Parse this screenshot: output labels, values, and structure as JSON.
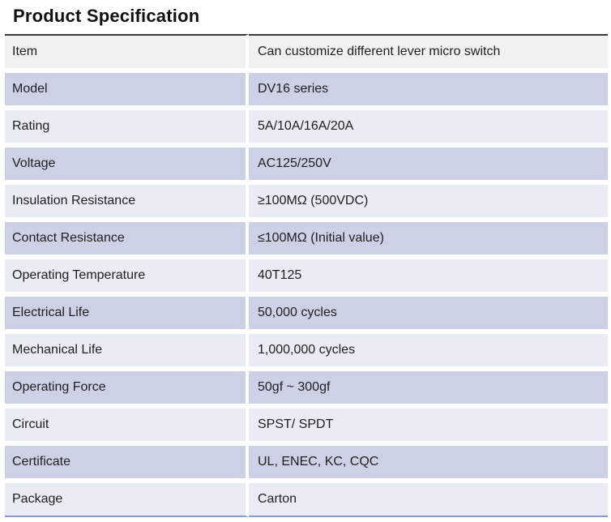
{
  "page_title": "Product Specification",
  "table": {
    "rows": [
      {
        "key": "Item",
        "value": "Can customize different lever micro switch"
      },
      {
        "key": "Model",
        "value": "DV16 series"
      },
      {
        "key": "Rating",
        "value": "5A/10A/16A/20A"
      },
      {
        "key": "Voltage",
        "value": "AC125/250V"
      },
      {
        "key": "Insulation Resistance",
        "value": "≥100MΩ (500VDC)"
      },
      {
        "key": "Contact Resistance",
        "value": "≤100MΩ (Initial value)"
      },
      {
        "key": "Operating Temperature",
        "value": "40T125"
      },
      {
        "key": "Electrical Life",
        "value": "50,000 cycles"
      },
      {
        "key": "Mechanical Life",
        "value": "1,000,000 cycles"
      },
      {
        "key": "Operating Force",
        "value": "50gf ~ 300gf"
      },
      {
        "key": "Circuit",
        "value": "SPST/ SPDT"
      },
      {
        "key": "Certificate",
        "value": "UL, ENEC, KC, CQC"
      },
      {
        "key": "Package",
        "value": "Carton"
      }
    ]
  },
  "colors": {
    "row_first_bg": "#f2f1f1",
    "row_dark_bg": "#ccd1e6",
    "row_light_bg": "#e9ebf5",
    "table_top_border": "#3a3a3a",
    "table_bottom_border": "#8e99cc",
    "text": "#1f1f1f"
  }
}
